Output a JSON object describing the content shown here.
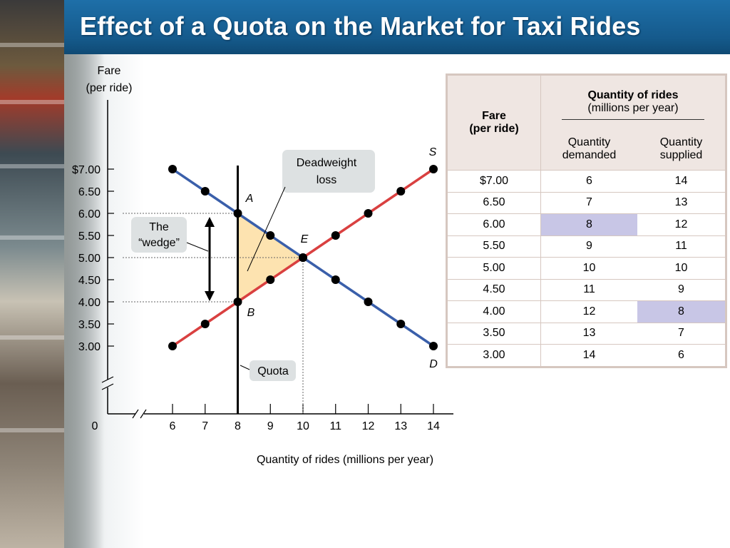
{
  "slide": {
    "title": "Effect of a Quota on the Market for Taxi Rides"
  },
  "chart_data": {
    "type": "line",
    "x_axis": {
      "title": "Quantity of rides (millions per year)",
      "ticks": [
        "6",
        "7",
        "8",
        "9",
        "10",
        "11",
        "12",
        "13",
        "14"
      ],
      "origin_label": "0",
      "broken": true
    },
    "y_axis": {
      "title_line1": "Fare",
      "title_line2": "(per ride)",
      "ticks": [
        "$7.00",
        "6.50",
        "6.00",
        "5.50",
        "5.00",
        "4.50",
        "4.00",
        "3.50",
        "3.00"
      ],
      "broken": true
    },
    "series": [
      {
        "name": "D",
        "color": "#3a5faa",
        "x": [
          6,
          7,
          8,
          9,
          10,
          11,
          12,
          13,
          14
        ],
        "y": [
          7.0,
          6.5,
          6.0,
          5.5,
          5.0,
          4.5,
          4.0,
          3.5,
          3.0
        ]
      },
      {
        "name": "S",
        "color": "#d94040",
        "x": [
          6,
          7,
          8,
          9,
          10,
          11,
          12,
          13,
          14
        ],
        "y": [
          3.0,
          3.5,
          4.0,
          4.5,
          5.0,
          5.5,
          6.0,
          6.5,
          7.0
        ]
      }
    ],
    "quota": {
      "x": 8,
      "label": "Quota"
    },
    "points": [
      {
        "label": "A",
        "x": 8,
        "y": 6.0
      },
      {
        "label": "B",
        "x": 8,
        "y": 4.0
      },
      {
        "label": "E",
        "x": 10,
        "y": 5.0
      }
    ],
    "deadweight_loss": {
      "label_line1": "Deadweight",
      "label_line2": "loss",
      "fill": "#fde3b0"
    },
    "wedge": {
      "label_line1": "The",
      "label_line2": "“wedge”"
    }
  },
  "table": {
    "header": {
      "fare": "Fare",
      "fare_sub": "(per ride)",
      "qty_group": "Quantity of rides",
      "qty_group_sub": "(millions per year)",
      "qd_line1": "Quantity",
      "qd_line2": "demanded",
      "qs_line1": "Quantity",
      "qs_line2": "supplied"
    },
    "rows": [
      {
        "fare": "$7.00",
        "qd": "6",
        "qs": "14"
      },
      {
        "fare": "6.50",
        "qd": "7",
        "qs": "13"
      },
      {
        "fare": "6.00",
        "qd": "8",
        "qs": "12"
      },
      {
        "fare": "5.50",
        "qd": "9",
        "qs": "11"
      },
      {
        "fare": "5.00",
        "qd": "10",
        "qs": "10"
      },
      {
        "fare": "4.50",
        "qd": "11",
        "qs": "9"
      },
      {
        "fare": "4.00",
        "qd": "12",
        "qs": "8"
      },
      {
        "fare": "3.50",
        "qd": "13",
        "qs": "7"
      },
      {
        "fare": "3.00",
        "qd": "14",
        "qs": "6"
      }
    ],
    "highlight": [
      {
        "row": 2,
        "col": "qd"
      },
      {
        "row": 6,
        "col": "qs"
      }
    ],
    "highlight_color": "#c8c6e6"
  }
}
